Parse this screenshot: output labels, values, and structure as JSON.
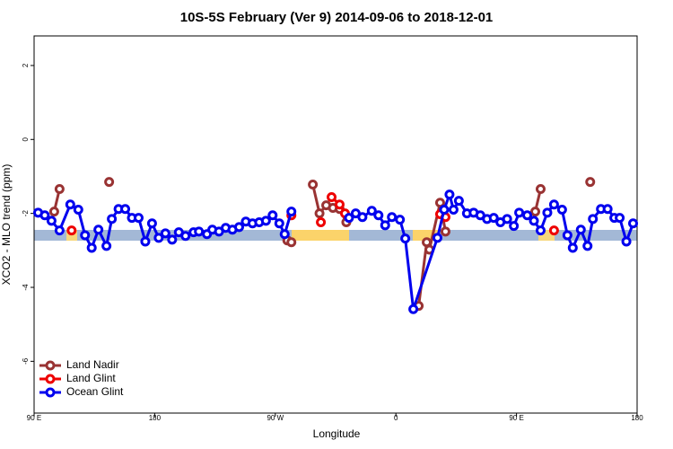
{
  "chart_data": {
    "type": "line",
    "title": "10S-5S February (Ver 9)   2014-09-06 to 2018-12-01",
    "x_label": "Longitude",
    "y_label": "XCO2 - MLO trend (ppm)",
    "xlim": [
      90,
      540
    ],
    "xticks": [
      {
        "value": 90,
        "label": "90 E"
      },
      180,
      {
        "value": 270,
        "label": "90 W"
      },
      {
        "value": 360,
        "label": "0"
      },
      {
        "value": 450,
        "label": "90 E"
      },
      {
        "value": 540,
        "label": "180"
      }
    ],
    "ylim": [
      -7.4,
      2.8
    ],
    "yticks": [
      -6,
      -4,
      -2,
      0,
      2
    ],
    "legend": "lower left",
    "series": [
      {
        "name": "Land Nadir",
        "color": "#993333",
        "x": [
          105,
          109,
          null,
          146,
          null,
          279,
          282,
          null,
          298,
          303,
          308,
          313,
          318,
          323,
          null,
          377,
          383,
          385,
          393,
          397,
          null,
          464,
          468,
          null,
          505
        ],
        "values": [
          -1.95,
          -1.34,
          null,
          -1.15,
          null,
          -2.73,
          -2.78,
          null,
          -1.22,
          -2.0,
          -1.78,
          -1.85,
          -1.88,
          -2.24,
          null,
          -4.5,
          -2.78,
          -2.98,
          -1.71,
          -2.49,
          null,
          -1.95,
          -1.34,
          null,
          -1.15
        ]
      },
      {
        "name": "Land Glint",
        "color": "#ee0000",
        "x": [
          118,
          null,
          282,
          null,
          304,
          null,
          312,
          318,
          322,
          null,
          393,
          397,
          null,
          478
        ],
        "values": [
          -2.46,
          null,
          -2.05,
          null,
          -2.24,
          null,
          -1.56,
          -1.76,
          -2.0,
          null,
          -2.02,
          -2.1,
          null,
          -2.46
        ]
      },
      {
        "name": "Ocean Glint",
        "color": "#0000ee",
        "x": [
          93,
          98,
          103,
          109,
          117,
          123,
          128,
          133,
          138,
          144,
          148,
          153,
          158,
          163,
          168,
          173,
          178,
          183,
          188,
          193,
          198,
          203,
          209,
          213,
          219,
          223,
          228,
          233,
          238,
          243,
          248,
          253,
          258,
          263,
          268,
          273,
          277,
          282,
          null,
          325,
          330,
          335,
          342,
          347,
          352,
          357,
          363,
          367,
          373,
          391,
          396,
          400,
          403,
          407,
          413,
          418,
          423,
          428,
          433,
          438,
          443,
          448,
          452,
          458,
          463,
          468,
          473,
          478,
          484,
          488,
          492,
          498,
          503,
          507,
          513,
          518,
          523,
          527,
          532,
          537
        ],
        "values": [
          -1.98,
          -2.05,
          -2.2,
          -2.46,
          -1.76,
          -1.9,
          -2.59,
          -2.93,
          -2.44,
          -2.88,
          -2.15,
          -1.88,
          -1.88,
          -2.12,
          -2.12,
          -2.76,
          -2.27,
          -2.66,
          -2.54,
          -2.71,
          -2.51,
          -2.61,
          -2.51,
          -2.49,
          -2.56,
          -2.44,
          -2.49,
          -2.39,
          -2.44,
          -2.37,
          -2.22,
          -2.27,
          -2.24,
          -2.2,
          -2.05,
          -2.27,
          -2.56,
          -1.95,
          null,
          -2.12,
          -2.0,
          -2.1,
          -1.93,
          -2.05,
          -2.32,
          -2.1,
          -2.17,
          -2.68,
          -4.59,
          -2.66,
          -1.9,
          -1.49,
          -1.9,
          -1.66,
          -2.0,
          -1.98,
          -2.05,
          -2.15,
          -2.12,
          -2.24,
          -2.15,
          -2.34,
          -1.98,
          -2.05,
          -2.2,
          -2.46,
          -1.98,
          -1.76,
          -1.9,
          -2.59,
          -2.93,
          -2.44,
          -2.88,
          -2.15,
          -1.88,
          -1.88,
          -2.12,
          -2.12,
          -2.76,
          -2.27
        ]
      }
    ]
  }
}
